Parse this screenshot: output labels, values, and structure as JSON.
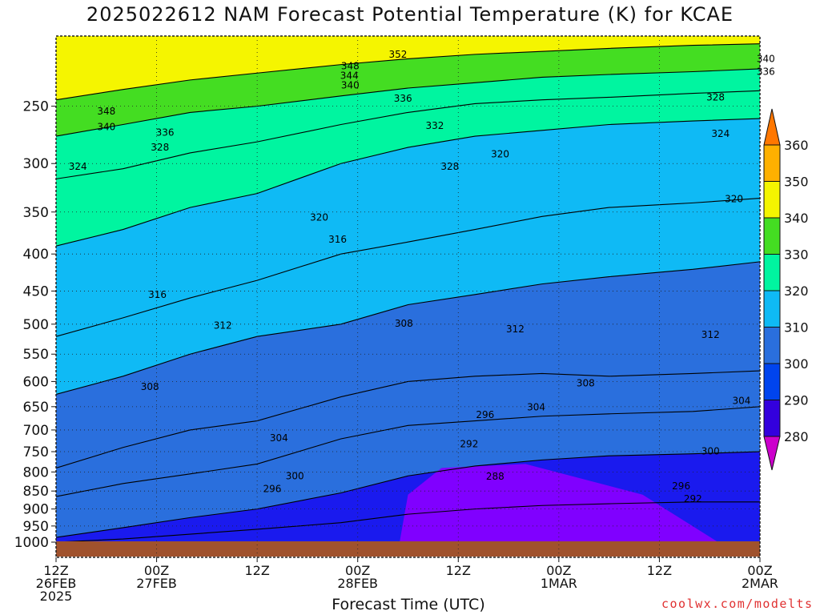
{
  "title": "2025022612 NAM Forecast Potential Temperature (K) for KCAE",
  "credit": "coolwx.com/modelts",
  "chart_data": {
    "type": "heatmap",
    "title": "2025022612 NAM Forecast Potential Temperature (K) for KCAE",
    "xlabel": "Forecast Time (UTC)",
    "ylabel": "",
    "y_scale": "log-pressure (inverted)",
    "ylim": [
      1000,
      200
    ],
    "xlim": [
      0,
      84
    ],
    "x_unit": "forecast hours from 12Z 26FEB 2025",
    "y_ticks": [
      250,
      300,
      350,
      400,
      450,
      500,
      550,
      600,
      650,
      700,
      750,
      800,
      850,
      900,
      950,
      1000
    ],
    "x_ticks": [
      {
        "hour": 0,
        "lines": [
          "12Z",
          "26FEB",
          "2025"
        ]
      },
      {
        "hour": 12,
        "lines": [
          "00Z",
          "27FEB"
        ]
      },
      {
        "hour": 24,
        "lines": [
          "12Z"
        ]
      },
      {
        "hour": 36,
        "lines": [
          "00Z",
          "28FEB"
        ]
      },
      {
        "hour": 48,
        "lines": [
          "12Z"
        ]
      },
      {
        "hour": 60,
        "lines": [
          "00Z",
          "1MAR"
        ]
      },
      {
        "hour": 72,
        "lines": [
          "12Z"
        ]
      },
      {
        "hour": 84,
        "lines": [
          "00Z",
          "2MAR"
        ]
      }
    ],
    "grid": true,
    "colorbar": {
      "levels": [
        280,
        290,
        300,
        310,
        320,
        330,
        340,
        350,
        360
      ],
      "colors": [
        "#cc00cc",
        "#8000ff",
        "#3300dd",
        "#0044ee",
        "#2a6fdd",
        "#0fbaf5",
        "#00f5a0",
        "#44dd22",
        "#f5f500",
        "#ffb000",
        "#ff7700"
      ]
    },
    "isentropes": [
      {
        "theta": 296,
        "p": [
          1000,
          990,
          975,
          960,
          940,
          915,
          900,
          890,
          885,
          880,
          880
        ]
      },
      {
        "theta": 300,
        "p": [
          985,
          955,
          925,
          900,
          855,
          810,
          785,
          770,
          760,
          755,
          750
        ]
      },
      {
        "theta": 304,
        "p": [
          865,
          830,
          805,
          780,
          720,
          690,
          680,
          670,
          665,
          660,
          650
        ]
      },
      {
        "theta": 308,
        "p": [
          790,
          740,
          700,
          680,
          630,
          600,
          590,
          585,
          590,
          585,
          580
        ]
      },
      {
        "theta": 312,
        "p": [
          625,
          590,
          550,
          520,
          500,
          470,
          455,
          440,
          430,
          420,
          410
        ]
      },
      {
        "theta": 316,
        "p": [
          520,
          490,
          460,
          435,
          400,
          385,
          370,
          355,
          345,
          340,
          335
        ]
      },
      {
        "theta": 320,
        "p": [
          390,
          370,
          345,
          330,
          300,
          285,
          275,
          270,
          265,
          262,
          260
        ]
      },
      {
        "theta": 328,
        "p": [
          315,
          305,
          290,
          280,
          265,
          255,
          248,
          245,
          243,
          240,
          238
        ]
      },
      {
        "theta": 336,
        "p": [
          275,
          265,
          255,
          250,
          242,
          236,
          232,
          228,
          226,
          224,
          222
        ]
      },
      {
        "theta": 344,
        "p": [
          245,
          237,
          230,
          225,
          219,
          215,
          212,
          210,
          208,
          206,
          205
        ]
      }
    ],
    "isentrope_hours": [
      0,
      8,
      16,
      24,
      34,
      42,
      50,
      58,
      66,
      76,
      84
    ],
    "contour_labels": [
      {
        "text": "352",
        "hour": 40.8,
        "p": 212
      },
      {
        "text": "348",
        "hour": 35.1,
        "p": 220
      },
      {
        "text": "344",
        "hour": 35.0,
        "p": 227
      },
      {
        "text": "340",
        "hour": 35.1,
        "p": 234
      },
      {
        "text": "336",
        "hour": 41.4,
        "p": 244
      },
      {
        "text": "332",
        "hour": 45.2,
        "p": 266
      },
      {
        "text": "348",
        "hour": 6.0,
        "p": 254
      },
      {
        "text": "340",
        "hour": 6.0,
        "p": 267
      },
      {
        "text": "336",
        "hour": 13.0,
        "p": 272
      },
      {
        "text": "328",
        "hour": 12.4,
        "p": 285
      },
      {
        "text": "324",
        "hour": 2.6,
        "p": 303
      },
      {
        "text": "328",
        "hour": 47.0,
        "p": 303
      },
      {
        "text": "320",
        "hour": 53.0,
        "p": 291
      },
      {
        "text": "340",
        "hour": 84.7,
        "p": 215
      },
      {
        "text": "336",
        "hour": 84.7,
        "p": 224
      },
      {
        "text": "328",
        "hour": 78.7,
        "p": 243
      },
      {
        "text": "324",
        "hour": 79.3,
        "p": 273
      },
      {
        "text": "320",
        "hour": 80.9,
        "p": 336
      },
      {
        "text": "320",
        "hour": 31.4,
        "p": 356
      },
      {
        "text": "316",
        "hour": 33.6,
        "p": 382
      },
      {
        "text": "316",
        "hour": 12.1,
        "p": 455
      },
      {
        "text": "312",
        "hour": 19.9,
        "p": 502
      },
      {
        "text": "308",
        "hour": 41.5,
        "p": 499
      },
      {
        "text": "312",
        "hour": 54.8,
        "p": 508
      },
      {
        "text": "312",
        "hour": 78.1,
        "p": 517
      },
      {
        "text": "308",
        "hour": 11.2,
        "p": 610
      },
      {
        "text": "308",
        "hour": 63.2,
        "p": 603
      },
      {
        "text": "304",
        "hour": 57.3,
        "p": 651
      },
      {
        "text": "304",
        "hour": 81.8,
        "p": 638
      },
      {
        "text": "304",
        "hour": 26.6,
        "p": 718
      },
      {
        "text": "296",
        "hour": 51.2,
        "p": 667
      },
      {
        "text": "292",
        "hour": 49.3,
        "p": 732
      },
      {
        "text": "300",
        "hour": 28.5,
        "p": 810
      },
      {
        "text": "296",
        "hour": 25.8,
        "p": 844
      },
      {
        "text": "300",
        "hour": 78.1,
        "p": 749
      },
      {
        "text": "296",
        "hour": 74.6,
        "p": 837
      },
      {
        "text": "292",
        "hour": 76.0,
        "p": 871
      },
      {
        "text": "288",
        "hour": 52.4,
        "p": 812
      }
    ]
  }
}
